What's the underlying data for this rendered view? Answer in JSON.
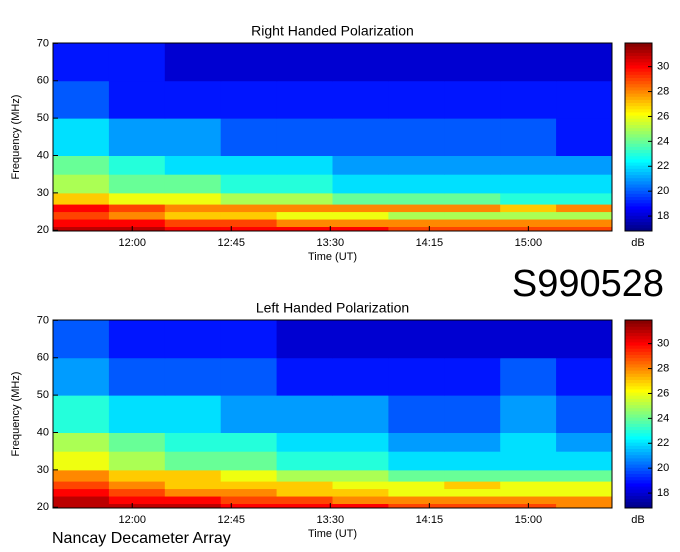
{
  "chart_data": [
    {
      "type": "heatmap",
      "title": "Right Handed Polarization",
      "xlabel": "Time (UT)",
      "ylabel": "Frequency (MHz)",
      "colorbar_label": "dB",
      "colormap": "jet",
      "xlim": [
        684,
        938
      ],
      "ylim": [
        19.8,
        70.1
      ],
      "zlim": [
        16.8,
        31.9
      ],
      "xticks": [
        {
          "value": 720,
          "label": "12:00"
        },
        {
          "value": 765,
          "label": "12:45"
        },
        {
          "value": 810,
          "label": "13:30"
        },
        {
          "value": 855,
          "label": "14:15"
        },
        {
          "value": 900,
          "label": "15:00"
        }
      ],
      "yticks": [
        20,
        30,
        40,
        50,
        60,
        70
      ],
      "zticks": [
        18,
        20,
        22,
        24,
        26,
        28,
        30
      ],
      "xbins": [
        684,
        709.4,
        734.8,
        760.2,
        785.6,
        811,
        836.4,
        861.8,
        887.2,
        912.6,
        938
      ],
      "ybins": [
        19.8,
        21,
        23,
        25,
        27,
        30,
        35,
        40,
        50,
        60,
        70.1
      ],
      "z": [
        [
          31,
          31,
          30,
          30,
          30,
          30,
          29,
          29,
          29,
          29
        ],
        [
          30,
          30,
          29,
          29,
          28,
          28,
          28,
          28,
          28,
          28
        ],
        [
          29,
          28,
          27,
          27,
          26,
          26,
          25,
          25,
          25,
          25
        ],
        [
          30,
          29,
          28,
          28,
          28,
          28,
          28,
          28,
          27,
          28
        ],
        [
          27,
          26,
          26,
          25,
          25,
          24,
          24,
          24,
          23,
          23
        ],
        [
          25,
          24,
          24,
          23,
          23,
          22,
          22,
          22,
          22,
          22
        ],
        [
          24,
          23,
          22,
          22,
          22,
          21,
          21,
          21,
          21,
          21
        ],
        [
          22,
          21,
          21,
          20,
          20,
          20,
          20,
          20,
          20,
          19
        ],
        [
          20,
          19,
          19,
          19,
          19,
          19,
          19,
          19,
          19,
          19
        ],
        [
          19,
          19,
          18,
          18,
          18,
          18,
          18,
          18,
          18,
          18
        ]
      ]
    },
    {
      "type": "heatmap",
      "title": "Left Handed Polarization",
      "xlabel": "Time (UT)",
      "ylabel": "Frequency (MHz)",
      "colorbar_label": "dB",
      "colormap": "jet",
      "xlim": [
        684,
        938
      ],
      "ylim": [
        19.8,
        70.1
      ],
      "zlim": [
        16.8,
        31.9
      ],
      "xticks": [
        {
          "value": 720,
          "label": "12:00"
        },
        {
          "value": 765,
          "label": "12:45"
        },
        {
          "value": 810,
          "label": "13:30"
        },
        {
          "value": 855,
          "label": "14:15"
        },
        {
          "value": 900,
          "label": "15:00"
        }
      ],
      "yticks": [
        20,
        30,
        40,
        50,
        60,
        70
      ],
      "zticks": [
        18,
        20,
        22,
        24,
        26,
        28,
        30
      ],
      "xbins": [
        684,
        709.4,
        734.8,
        760.2,
        785.6,
        811,
        836.4,
        861.8,
        887.2,
        912.6,
        938
      ],
      "ybins": [
        19.8,
        21,
        23,
        25,
        27,
        30,
        35,
        40,
        50,
        60,
        70.1
      ],
      "z": [
        [
          31,
          31,
          31,
          30,
          30,
          30,
          29,
          29,
          29,
          28
        ],
        [
          31,
          30,
          30,
          29,
          29,
          28,
          28,
          28,
          28,
          28
        ],
        [
          30,
          29,
          28,
          28,
          27,
          27,
          26,
          26,
          26,
          26
        ],
        [
          29,
          28,
          27,
          27,
          27,
          26,
          26,
          27,
          26,
          26
        ],
        [
          28,
          27,
          27,
          26,
          25,
          25,
          24,
          24,
          24,
          24
        ],
        [
          26,
          25,
          24,
          24,
          23,
          23,
          22,
          22,
          22,
          22
        ],
        [
          25,
          24,
          23,
          23,
          22,
          22,
          21,
          21,
          22,
          21
        ],
        [
          23,
          22,
          22,
          21,
          21,
          21,
          20,
          20,
          21,
          20
        ],
        [
          21,
          20,
          20,
          20,
          19,
          19,
          19,
          19,
          20,
          19
        ],
        [
          20,
          19,
          19,
          19,
          18,
          18,
          18,
          18,
          18,
          18
        ]
      ]
    }
  ],
  "label": "S990528",
  "footer": "Nancay Decameter Array"
}
